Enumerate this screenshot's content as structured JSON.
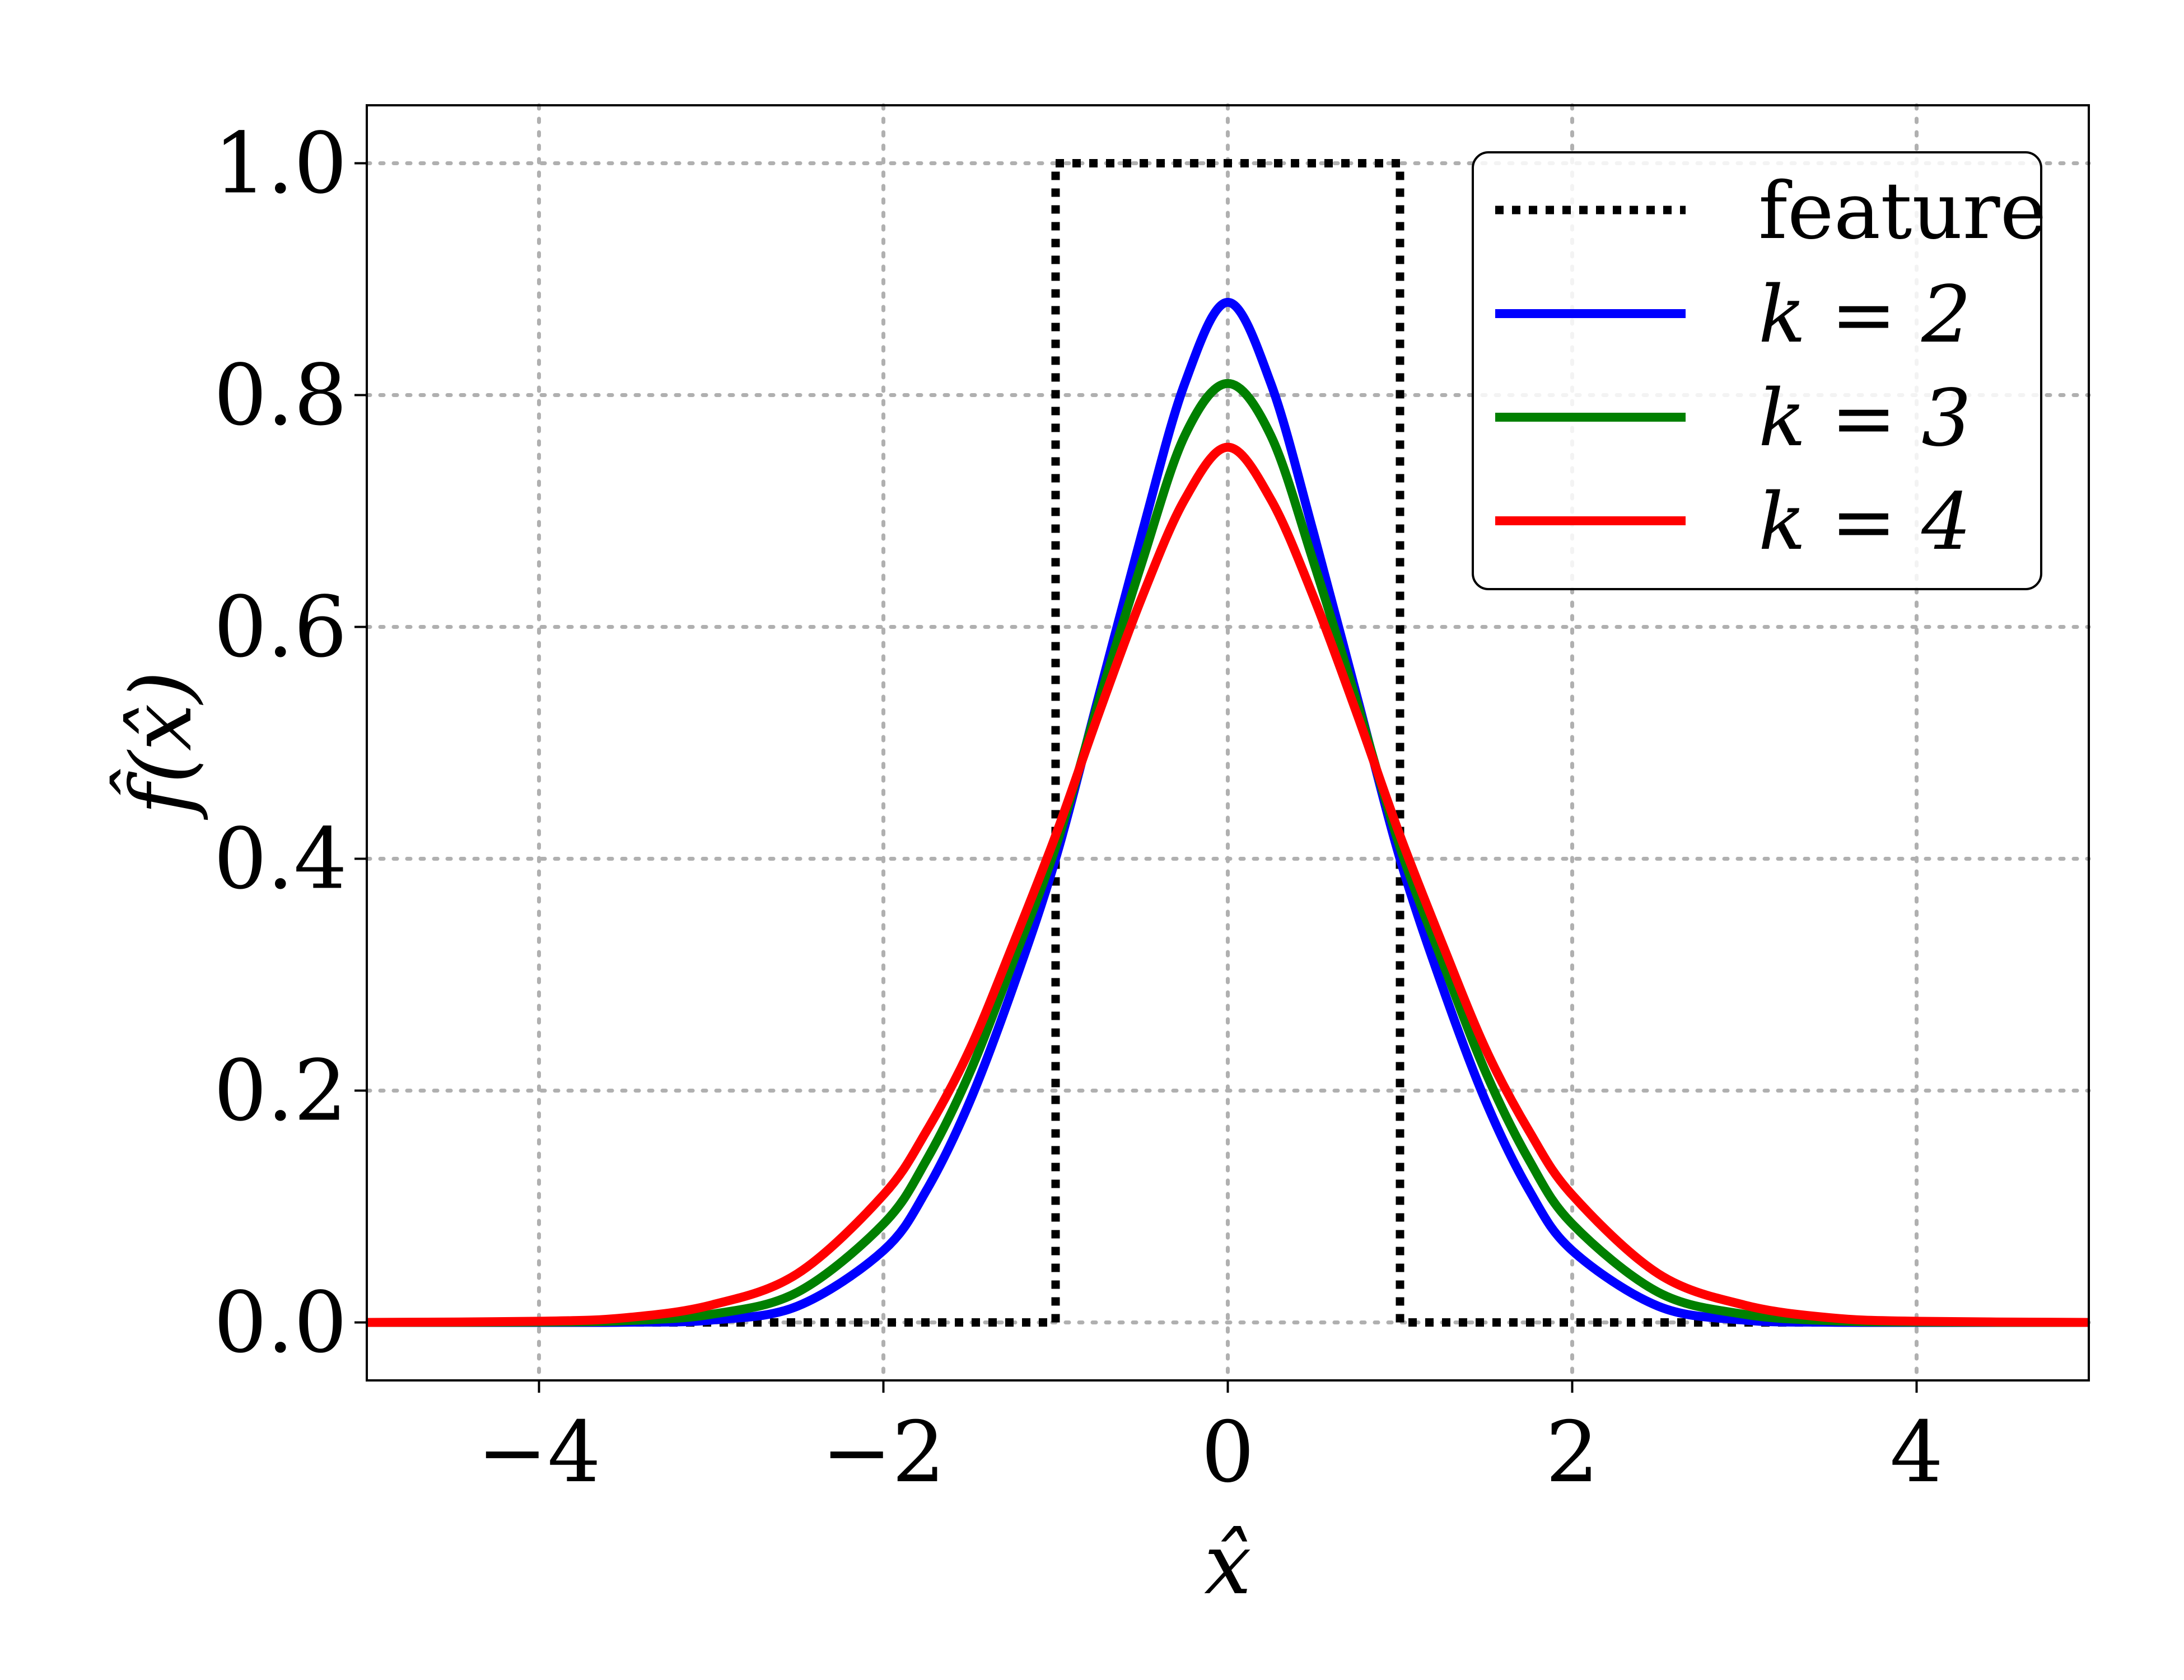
{
  "chart_data": {
    "type": "line",
    "title": "",
    "xlabel": "x̂",
    "ylabel": "f̂(x̂)",
    "xlim": [
      -5,
      5
    ],
    "ylim": [
      -0.05,
      1.05
    ],
    "xticks": [
      -4,
      -2,
      0,
      2,
      4
    ],
    "xtick_labels": [
      "−4",
      "−2",
      "0",
      "2",
      "4"
    ],
    "yticks": [
      0.0,
      0.2,
      0.4,
      0.6,
      0.8,
      1.0
    ],
    "ytick_labels": [
      "0.0",
      "0.2",
      "0.4",
      "0.6",
      "0.8",
      "1.0"
    ],
    "grid": true,
    "legend_position": "top-right",
    "series": [
      {
        "name": "feature",
        "color": "#000000",
        "style": "dotted",
        "x": [
          -5,
          -1,
          -1,
          1,
          1,
          5
        ],
        "y": [
          0,
          0,
          1,
          1,
          0,
          0
        ]
      },
      {
        "name": "k = 2",
        "color": "#0000ff",
        "style": "solid",
        "x": [
          -5,
          -4,
          -3.5,
          -3,
          -2.5,
          -2,
          -1.75,
          -1.5,
          -1.25,
          -1,
          -0.75,
          -0.5,
          -0.25,
          0,
          0.25,
          0.5,
          0.75,
          1,
          1.25,
          1.5,
          1.75,
          2,
          2.5,
          3,
          3.5,
          4,
          5
        ],
        "y": [
          0.0,
          0.0,
          0.0002,
          0.002,
          0.014,
          0.062,
          0.114,
          0.19,
          0.288,
          0.4,
          0.54,
          0.68,
          0.81,
          0.88,
          0.81,
          0.68,
          0.54,
          0.4,
          0.288,
          0.19,
          0.114,
          0.062,
          0.014,
          0.002,
          0.0002,
          0.0,
          0.0
        ]
      },
      {
        "name": "k = 3",
        "color": "#008000",
        "style": "solid",
        "x": [
          -5,
          -4,
          -3.5,
          -3,
          -2.5,
          -2,
          -1.75,
          -1.5,
          -1.25,
          -1,
          -0.75,
          -0.5,
          -0.25,
          0,
          0.25,
          0.5,
          0.75,
          1,
          1.25,
          1.5,
          1.75,
          2,
          2.5,
          3,
          3.5,
          4,
          5
        ],
        "y": [
          0.0,
          0.0003,
          0.0015,
          0.007,
          0.026,
          0.085,
          0.14,
          0.215,
          0.31,
          0.41,
          0.535,
          0.655,
          0.765,
          0.81,
          0.765,
          0.655,
          0.535,
          0.41,
          0.31,
          0.215,
          0.14,
          0.085,
          0.026,
          0.007,
          0.0015,
          0.0003,
          0.0
        ]
      },
      {
        "name": "k = 4",
        "color": "#ff0000",
        "style": "solid",
        "x": [
          -5,
          -4,
          -3.5,
          -3,
          -2.5,
          -2,
          -1.75,
          -1.5,
          -1.25,
          -1,
          -0.75,
          -0.5,
          -0.25,
          0,
          0.25,
          0.5,
          0.75,
          1,
          1.25,
          1.5,
          1.75,
          2,
          2.5,
          3,
          3.5,
          4,
          5
        ],
        "y": [
          0.0,
          0.001,
          0.004,
          0.015,
          0.042,
          0.11,
          0.165,
          0.235,
          0.325,
          0.42,
          0.525,
          0.625,
          0.71,
          0.755,
          0.71,
          0.625,
          0.525,
          0.42,
          0.325,
          0.235,
          0.165,
          0.11,
          0.042,
          0.015,
          0.004,
          0.001,
          0.0
        ]
      }
    ]
  }
}
